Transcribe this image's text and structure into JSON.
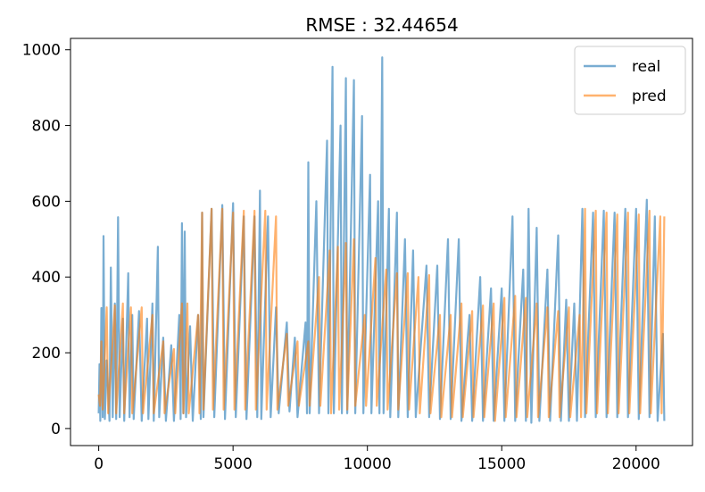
{
  "chart_data": {
    "type": "line",
    "title": "RMSE : 32.44654",
    "xlabel": "",
    "ylabel": "",
    "xlim": [
      -1050,
      22100
    ],
    "ylim": [
      -45,
      1030
    ],
    "x_ticks": [
      0,
      5000,
      10000,
      15000,
      20000
    ],
    "y_ticks": [
      0,
      200,
      400,
      600,
      800,
      1000
    ],
    "legend_position": "top-right",
    "series": [
      {
        "name": "real",
        "color": "#1f77b4",
        "points": [
          [
            0,
            40
          ],
          [
            30,
            170
          ],
          [
            60,
            20
          ],
          [
            100,
            318
          ],
          [
            150,
            30
          ],
          [
            180,
            508
          ],
          [
            230,
            25
          ],
          [
            300,
            180
          ],
          [
            400,
            20
          ],
          [
            450,
            425
          ],
          [
            520,
            30
          ],
          [
            600,
            330
          ],
          [
            650,
            25
          ],
          [
            720,
            558
          ],
          [
            780,
            30
          ],
          [
            900,
            290
          ],
          [
            950,
            20
          ],
          [
            1100,
            410
          ],
          [
            1150,
            30
          ],
          [
            1250,
            300
          ],
          [
            1300,
            25
          ],
          [
            1500,
            310
          ],
          [
            1600,
            20
          ],
          [
            1800,
            290
          ],
          [
            1850,
            25
          ],
          [
            2000,
            330
          ],
          [
            2050,
            20
          ],
          [
            2200,
            480
          ],
          [
            2250,
            30
          ],
          [
            2400,
            240
          ],
          [
            2500,
            20
          ],
          [
            2700,
            220
          ],
          [
            2800,
            20
          ],
          [
            3000,
            300
          ],
          [
            3050,
            25
          ],
          [
            3100,
            542
          ],
          [
            3150,
            40
          ],
          [
            3200,
            520
          ],
          [
            3250,
            30
          ],
          [
            3400,
            270
          ],
          [
            3500,
            20
          ],
          [
            3700,
            300
          ],
          [
            3800,
            25
          ],
          [
            3850,
            570
          ],
          [
            3900,
            30
          ],
          [
            4200,
            580
          ],
          [
            4300,
            30
          ],
          [
            4600,
            590
          ],
          [
            4700,
            25
          ],
          [
            5000,
            595
          ],
          [
            5100,
            30
          ],
          [
            5400,
            560
          ],
          [
            5500,
            25
          ],
          [
            5800,
            560
          ],
          [
            5900,
            30
          ],
          [
            6000,
            628
          ],
          [
            6050,
            25
          ],
          [
            6300,
            560
          ],
          [
            6400,
            30
          ],
          [
            6600,
            320
          ],
          [
            6700,
            40
          ],
          [
            7000,
            280
          ],
          [
            7100,
            45
          ],
          [
            7300,
            240
          ],
          [
            7400,
            30
          ],
          [
            7700,
            280
          ],
          [
            7750,
            40
          ],
          [
            7800,
            703
          ],
          [
            7850,
            40
          ],
          [
            8100,
            600
          ],
          [
            8200,
            40
          ],
          [
            8500,
            760
          ],
          [
            8550,
            40
          ],
          [
            8700,
            955
          ],
          [
            8750,
            40
          ],
          [
            9000,
            800
          ],
          [
            9050,
            40
          ],
          [
            9200,
            925
          ],
          [
            9250,
            40
          ],
          [
            9500,
            920
          ],
          [
            9550,
            40
          ],
          [
            9800,
            825
          ],
          [
            9850,
            40
          ],
          [
            10100,
            670
          ],
          [
            10150,
            40
          ],
          [
            10400,
            600
          ],
          [
            10450,
            40
          ],
          [
            10550,
            980
          ],
          [
            10600,
            40
          ],
          [
            10800,
            580
          ],
          [
            10850,
            30
          ],
          [
            11100,
            570
          ],
          [
            11150,
            30
          ],
          [
            11400,
            500
          ],
          [
            11500,
            30
          ],
          [
            11700,
            470
          ],
          [
            11800,
            30
          ],
          [
            12200,
            430
          ],
          [
            12300,
            30
          ],
          [
            12600,
            430
          ],
          [
            12700,
            25
          ],
          [
            13000,
            500
          ],
          [
            13100,
            25
          ],
          [
            13400,
            500
          ],
          [
            13500,
            20
          ],
          [
            13800,
            300
          ],
          [
            13900,
            20
          ],
          [
            14200,
            400
          ],
          [
            14300,
            20
          ],
          [
            14600,
            370
          ],
          [
            14700,
            20
          ],
          [
            15000,
            370
          ],
          [
            15100,
            20
          ],
          [
            15400,
            560
          ],
          [
            15500,
            20
          ],
          [
            15800,
            420
          ],
          [
            15900,
            20
          ],
          [
            16000,
            580
          ],
          [
            16100,
            15
          ],
          [
            16300,
            530
          ],
          [
            16400,
            20
          ],
          [
            16700,
            420
          ],
          [
            16800,
            20
          ],
          [
            17100,
            510
          ],
          [
            17200,
            20
          ],
          [
            17400,
            340
          ],
          [
            17500,
            20
          ],
          [
            17700,
            330
          ],
          [
            17800,
            20
          ],
          [
            18000,
            580
          ],
          [
            18100,
            30
          ],
          [
            18400,
            570
          ],
          [
            18500,
            30
          ],
          [
            18800,
            575
          ],
          [
            18900,
            30
          ],
          [
            19200,
            570
          ],
          [
            19300,
            30
          ],
          [
            19600,
            580
          ],
          [
            19700,
            30
          ],
          [
            20000,
            580
          ],
          [
            20100,
            25
          ],
          [
            20400,
            604
          ],
          [
            20500,
            30
          ],
          [
            20700,
            560
          ],
          [
            20800,
            20
          ],
          [
            21000,
            250
          ],
          [
            21050,
            20
          ]
        ]
      },
      {
        "name": "pred",
        "color": "#ff7f0e",
        "points": [
          [
            0,
            90
          ],
          [
            50,
            60
          ],
          [
            100,
            230
          ],
          [
            150,
            50
          ],
          [
            300,
            320
          ],
          [
            350,
            40
          ],
          [
            600,
            325
          ],
          [
            650,
            40
          ],
          [
            900,
            330
          ],
          [
            950,
            40
          ],
          [
            1200,
            320
          ],
          [
            1250,
            40
          ],
          [
            1600,
            320
          ],
          [
            1650,
            40
          ],
          [
            2000,
            300
          ],
          [
            2050,
            40
          ],
          [
            2400,
            230
          ],
          [
            2450,
            40
          ],
          [
            2800,
            210
          ],
          [
            2850,
            40
          ],
          [
            3100,
            330
          ],
          [
            3150,
            40
          ],
          [
            3300,
            330
          ],
          [
            3350,
            40
          ],
          [
            3700,
            300
          ],
          [
            3750,
            40
          ],
          [
            3850,
            570
          ],
          [
            3900,
            50
          ],
          [
            4200,
            580
          ],
          [
            4250,
            50
          ],
          [
            4600,
            580
          ],
          [
            4650,
            50
          ],
          [
            5000,
            570
          ],
          [
            5050,
            50
          ],
          [
            5400,
            575
          ],
          [
            5450,
            50
          ],
          [
            5800,
            575
          ],
          [
            5850,
            50
          ],
          [
            6200,
            575
          ],
          [
            6250,
            50
          ],
          [
            6600,
            560
          ],
          [
            6650,
            50
          ],
          [
            7000,
            250
          ],
          [
            7050,
            60
          ],
          [
            7400,
            230
          ],
          [
            7450,
            60
          ],
          [
            7800,
            230
          ],
          [
            7850,
            60
          ],
          [
            8200,
            400
          ],
          [
            8250,
            60
          ],
          [
            8600,
            470
          ],
          [
            8650,
            40
          ],
          [
            8900,
            480
          ],
          [
            8950,
            50
          ],
          [
            9200,
            490
          ],
          [
            9250,
            50
          ],
          [
            9500,
            500
          ],
          [
            9550,
            60
          ],
          [
            9900,
            300
          ],
          [
            9950,
            60
          ],
          [
            10300,
            450
          ],
          [
            10350,
            60
          ],
          [
            10700,
            420
          ],
          [
            10750,
            50
          ],
          [
            11100,
            410
          ],
          [
            11150,
            50
          ],
          [
            11500,
            410
          ],
          [
            11550,
            50
          ],
          [
            11900,
            400
          ],
          [
            11950,
            40
          ],
          [
            12300,
            405
          ],
          [
            12350,
            40
          ],
          [
            12700,
            300
          ],
          [
            12750,
            30
          ],
          [
            13100,
            300
          ],
          [
            13150,
            30
          ],
          [
            13500,
            330
          ],
          [
            13550,
            30
          ],
          [
            13900,
            310
          ],
          [
            13950,
            30
          ],
          [
            14300,
            325
          ],
          [
            14350,
            30
          ],
          [
            14700,
            330
          ],
          [
            14750,
            20
          ],
          [
            15100,
            345
          ],
          [
            15150,
            30
          ],
          [
            15500,
            350
          ],
          [
            15550,
            30
          ],
          [
            15900,
            345
          ],
          [
            15950,
            30
          ],
          [
            16300,
            330
          ],
          [
            16350,
            30
          ],
          [
            16700,
            320
          ],
          [
            16750,
            30
          ],
          [
            17100,
            310
          ],
          [
            17150,
            30
          ],
          [
            17500,
            320
          ],
          [
            17550,
            30
          ],
          [
            17900,
            300
          ],
          [
            17950,
            30
          ],
          [
            18100,
            580
          ],
          [
            18150,
            40
          ],
          [
            18500,
            575
          ],
          [
            18550,
            40
          ],
          [
            18900,
            570
          ],
          [
            18950,
            40
          ],
          [
            19300,
            565
          ],
          [
            19350,
            40
          ],
          [
            19700,
            570
          ],
          [
            19750,
            40
          ],
          [
            20100,
            565
          ],
          [
            20150,
            40
          ],
          [
            20500,
            575
          ],
          [
            20550,
            40
          ],
          [
            20900,
            560
          ],
          [
            20950,
            40
          ],
          [
            21050,
            560
          ]
        ]
      }
    ]
  }
}
